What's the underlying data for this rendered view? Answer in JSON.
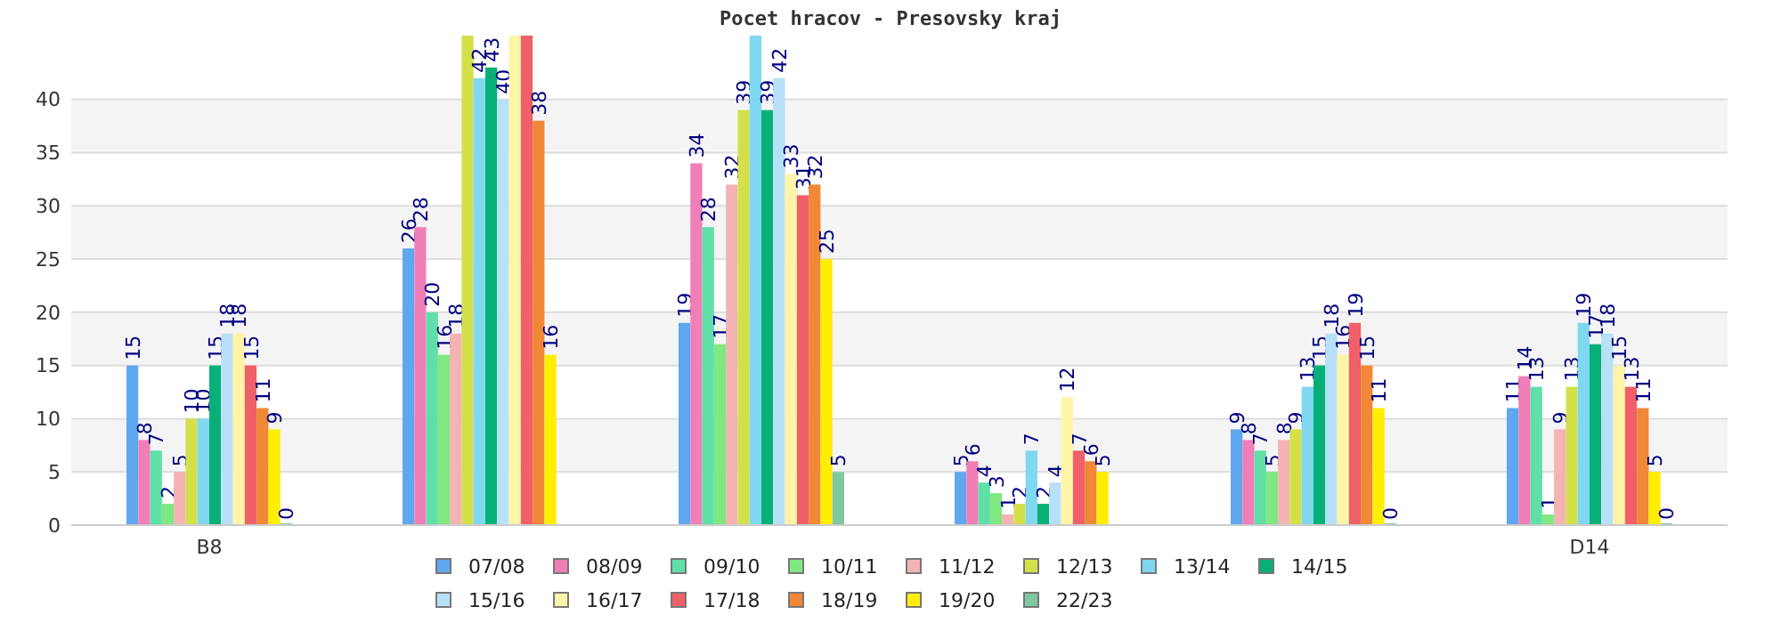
{
  "chart_data": {
    "type": "bar",
    "title": "Pocet hracov - Presovsky kraj",
    "categories": [
      "B8",
      null,
      null,
      null,
      null,
      "D14"
    ],
    "ylim": [
      0,
      46
    ],
    "yticks": [
      0,
      5,
      10,
      15,
      20,
      25,
      30,
      35,
      40
    ],
    "grid": "y",
    "legend": "bottom",
    "series": [
      {
        "name": "07/08",
        "color": "#5fa8f0",
        "values": [
          15,
          26,
          19,
          5,
          9,
          11
        ],
        "value_labels": [
          "15",
          "26",
          "19",
          "5",
          "9",
          "11"
        ]
      },
      {
        "name": "08/09",
        "color": "#f07fb8",
        "values": [
          8,
          28,
          34,
          6,
          8,
          14
        ],
        "value_labels": [
          "8",
          "28",
          "34",
          "6",
          "8",
          "14"
        ]
      },
      {
        "name": "09/10",
        "color": "#5fe0a8",
        "values": [
          7,
          20,
          28,
          4,
          7,
          13
        ],
        "value_labels": [
          "7",
          "20",
          "28",
          "4",
          "7",
          "13"
        ]
      },
      {
        "name": "10/11",
        "color": "#80e880",
        "values": [
          2,
          16,
          17,
          3,
          5,
          1
        ],
        "value_labels": [
          "2",
          "16",
          "17",
          "3",
          "5",
          "1"
        ]
      },
      {
        "name": "11/12",
        "color": "#f4b4b4",
        "values": [
          5,
          18,
          32,
          1,
          8,
          9
        ],
        "value_labels": [
          "5",
          "18",
          "32",
          "1",
          "8",
          "9"
        ]
      },
      {
        "name": "12/13",
        "color": "#d4e04a",
        "values": [
          10,
          46,
          39,
          2,
          9,
          13
        ],
        "value_labels": [
          "10",
          null,
          "39",
          "2",
          "9",
          "13"
        ]
      },
      {
        "name": "13/14",
        "color": "#80d8f0",
        "values": [
          10,
          42,
          46,
          7,
          13,
          19
        ],
        "value_labels": [
          "10",
          "42",
          null,
          "7",
          "13",
          "19"
        ]
      },
      {
        "name": "14/15",
        "color": "#08b078",
        "values": [
          15,
          43,
          39,
          2,
          15,
          17
        ],
        "value_labels": [
          "15",
          "43",
          "39",
          "2",
          "15",
          "17"
        ]
      },
      {
        "name": "15/16",
        "color": "#b8e0f8",
        "values": [
          18,
          40,
          42,
          4,
          18,
          18
        ],
        "value_labels": [
          "18",
          "40",
          "42",
          "4",
          "18",
          "18"
        ]
      },
      {
        "name": "16/17",
        "color": "#fff4a8",
        "values": [
          18,
          46,
          33,
          12,
          16,
          15
        ],
        "value_labels": [
          "18",
          null,
          "33",
          "12",
          "16",
          "15"
        ]
      },
      {
        "name": "17/18",
        "color": "#f06068",
        "values": [
          15,
          46,
          31,
          7,
          19,
          13
        ],
        "value_labels": [
          "15",
          null,
          "31",
          "7",
          "19",
          "13"
        ]
      },
      {
        "name": "18/19",
        "color": "#f08838",
        "values": [
          11,
          38,
          32,
          6,
          15,
          11
        ],
        "value_labels": [
          "11",
          "38",
          "32",
          "6",
          "15",
          "11"
        ]
      },
      {
        "name": "19/20",
        "color": "#ffee00",
        "values": [
          9,
          16,
          25,
          5,
          11,
          5
        ],
        "value_labels": [
          "9",
          "16",
          "25",
          "5",
          "11",
          "5"
        ]
      },
      {
        "name": "22/23",
        "color": "#80c8a0",
        "values": [
          0,
          null,
          5,
          null,
          0,
          0
        ],
        "value_labels": [
          "0",
          null,
          "5",
          null,
          "0",
          "0"
        ]
      }
    ]
  }
}
